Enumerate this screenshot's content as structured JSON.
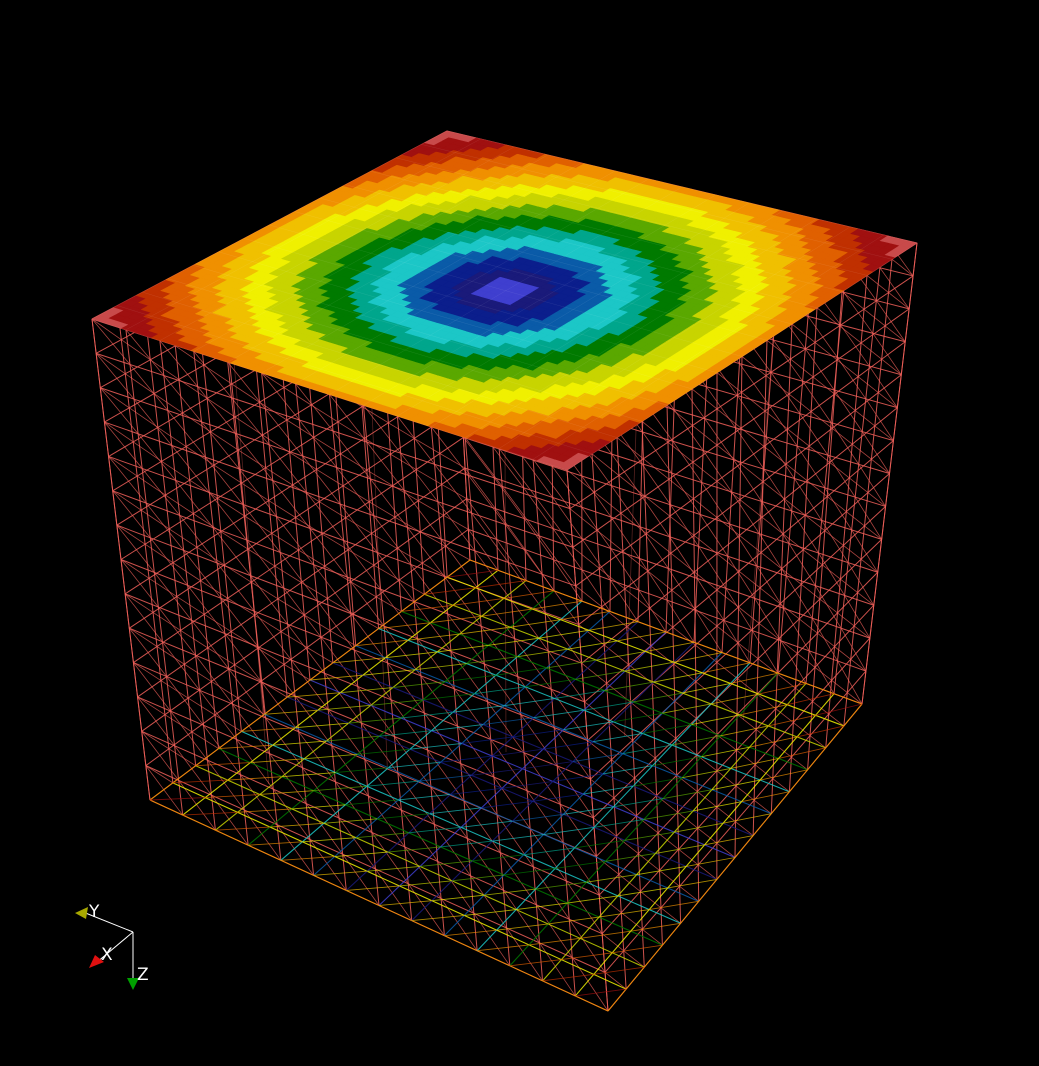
{
  "scene": {
    "background": "#000000",
    "object": "cube-mesh",
    "colormap": [
      "#3f3fcf",
      "#1a1a7a",
      "#0b1e8c",
      "#0a5ba8",
      "#1cc7c7",
      "#00a68c",
      "#007a00",
      "#5aa800",
      "#c8d400",
      "#f0f000",
      "#f0c000",
      "#f09000",
      "#e06000",
      "#c03000",
      "#a01010",
      "#c84a4a"
    ],
    "wire_color": "#f0605a",
    "top_face_style": "filled-contour",
    "bottom_face_style": "wireframe-contour",
    "side_faces_style": "wireframe"
  },
  "axes": {
    "x_label": "X",
    "y_label": "Y",
    "z_label": "Z",
    "x_color": "#e01010",
    "y_color": "#a8a800",
    "z_color": "#00a000"
  }
}
